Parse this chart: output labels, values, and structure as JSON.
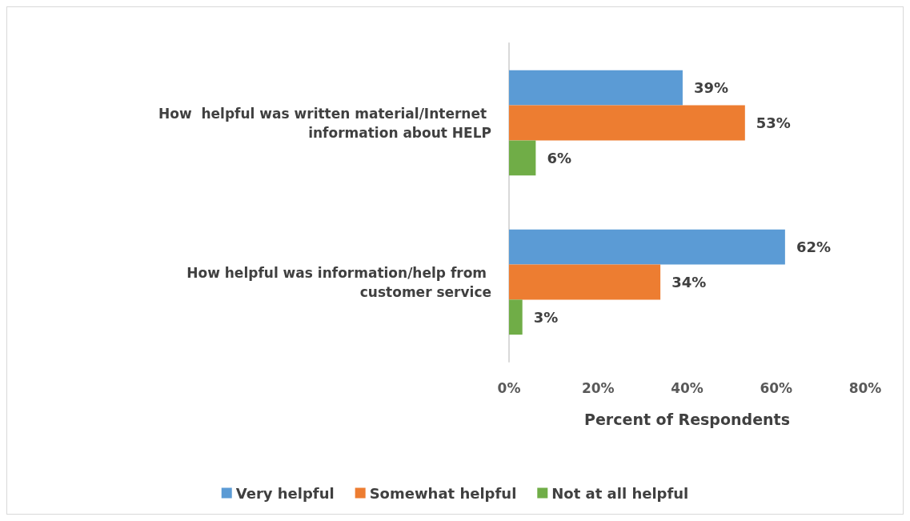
{
  "chart_data": {
    "type": "bar",
    "orientation": "horizontal",
    "xlabel": "Percent of Respondents",
    "categories": [
      "How  helpful was written material/Internet information about HELP",
      "How helpful was information/help from customer service"
    ],
    "series": [
      {
        "name": "Very helpful",
        "color": "#5b9bd5",
        "values": [
          39,
          62
        ],
        "value_labels": [
          "39%",
          "62%"
        ]
      },
      {
        "name": "Somewhat helpful",
        "color": "#ed7d31",
        "values": [
          53,
          34
        ],
        "value_labels": [
          "53%",
          "34%"
        ]
      },
      {
        "name": "Not at all helpful",
        "color": "#70ad47",
        "values": [
          6,
          3
        ],
        "value_labels": [
          "6%",
          "3%"
        ]
      }
    ],
    "xlim": [
      0,
      80
    ],
    "xticks": [
      {
        "value": 0,
        "label": "0%"
      },
      {
        "value": 20,
        "label": "20%"
      },
      {
        "value": 40,
        "label": "40%"
      },
      {
        "value": 60,
        "label": "60%"
      },
      {
        "value": 80,
        "label": "80%"
      }
    ],
    "grid": false,
    "legend": "bottom"
  }
}
